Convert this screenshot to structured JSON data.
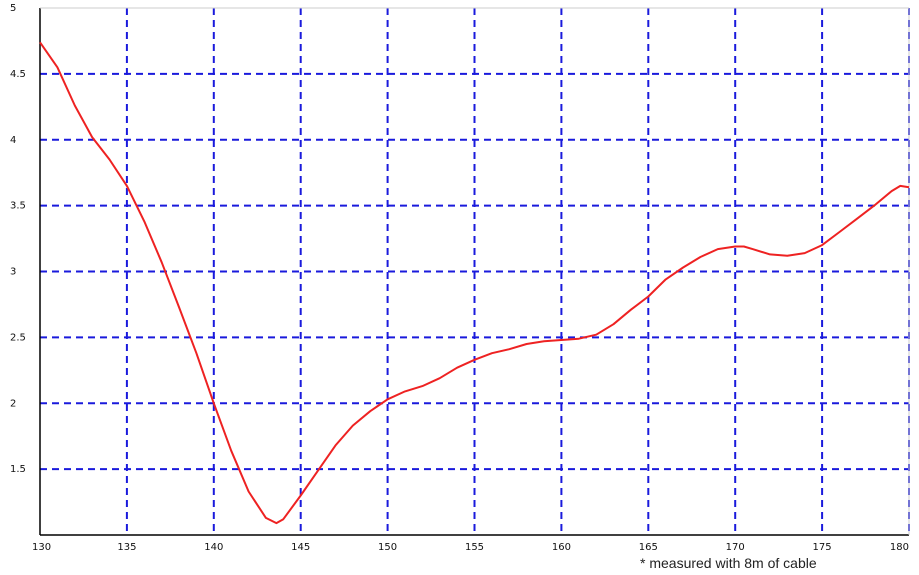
{
  "chart_data": {
    "type": "line",
    "xlim": [
      130,
      180
    ],
    "ylim": [
      1,
      5
    ],
    "x_ticks": [
      130,
      135,
      140,
      145,
      150,
      155,
      160,
      165,
      170,
      175,
      180
    ],
    "y_ticks": [
      1.5,
      2,
      2.5,
      3,
      3.5,
      4,
      4.5,
      5
    ],
    "x_tick_labels": [
      "130",
      "135",
      "140",
      "145",
      "150",
      "155",
      "160",
      "165",
      "170",
      "175",
      "180"
    ],
    "y_tick_labels": [
      "1.5",
      "2",
      "2.5",
      "3",
      "3.5",
      "4",
      "4.5",
      "5"
    ],
    "grid": true,
    "grid_style": "dashed",
    "grid_color": "#1a1adc",
    "line_color": "#ee2222",
    "series": [
      {
        "x": [
          130,
          131,
          132,
          133,
          134,
          135,
          136,
          137,
          138,
          139,
          140,
          141,
          142,
          143,
          143.6,
          144,
          145,
          146,
          147,
          148,
          149,
          150,
          151,
          152,
          153,
          154,
          155,
          156,
          157,
          158,
          159,
          160,
          161,
          162,
          163,
          164,
          165,
          166,
          167,
          168,
          169,
          170,
          170.5,
          171,
          172,
          173,
          174,
          175,
          176,
          177,
          178,
          179,
          179.5,
          180
        ],
        "y": [
          4.74,
          4.55,
          4.26,
          4.02,
          3.85,
          3.65,
          3.38,
          3.07,
          2.73,
          2.38,
          2.0,
          1.64,
          1.33,
          1.13,
          1.09,
          1.12,
          1.3,
          1.49,
          1.68,
          1.83,
          1.94,
          2.03,
          2.09,
          2.13,
          2.19,
          2.27,
          2.33,
          2.38,
          2.41,
          2.45,
          2.47,
          2.48,
          2.49,
          2.52,
          2.6,
          2.71,
          2.81,
          2.94,
          3.03,
          3.11,
          3.17,
          3.19,
          3.19,
          3.17,
          3.13,
          3.12,
          3.14,
          3.2,
          3.3,
          3.4,
          3.5,
          3.61,
          3.65,
          3.64
        ]
      }
    ],
    "annotation": "* measured with 8m of cable"
  }
}
